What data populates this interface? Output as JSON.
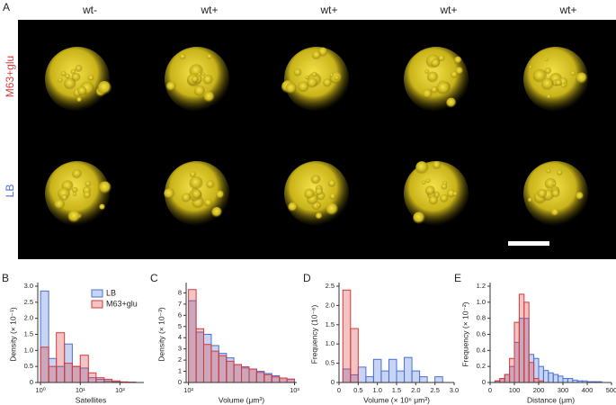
{
  "panel_a": {
    "label": "A",
    "columns": [
      "wt-",
      "wt+",
      "wt+",
      "wt+",
      "wt+"
    ],
    "rows": [
      "M63+glu",
      "LB"
    ]
  },
  "chart_data": [
    {
      "type": "histogram",
      "label": "B",
      "xlabel": "Satellites",
      "ylabel": "Density (× 10⁻¹)",
      "xscale": "log",
      "xlim": [
        0.85,
        400
      ],
      "xticks": [
        {
          "value": 1,
          "label": "10⁰"
        },
        {
          "value": 10,
          "label": "10¹"
        },
        {
          "value": 100,
          "label": "10²"
        }
      ],
      "ylim": [
        0,
        3.0
      ],
      "yticks": [
        0,
        0.5,
        {
          "value": 1.0,
          "label": "1.0"
        },
        1.5,
        {
          "value": 2.0,
          "label": "2.0"
        },
        2.5,
        {
          "value": 3.0,
          "label": "3.0"
        }
      ],
      "legend": "upper right",
      "bins": [
        1,
        1.6,
        2.5,
        4,
        6.3,
        10,
        16,
        25,
        40,
        63,
        100,
        160,
        250
      ],
      "series": [
        {
          "name": "LB",
          "color": "#4a6fd6",
          "values": [
            2.85,
            0.75,
            0.5,
            1.2,
            0.5,
            0.45,
            0.15,
            0.1,
            0.05,
            0.02,
            0.01,
            0.01
          ]
        },
        {
          "name": "M63+glu",
          "color": "#d63a3a",
          "values": [
            1.1,
            0.5,
            1.55,
            0.6,
            0.5,
            0.85,
            0.3,
            0.15,
            0.1,
            0.05,
            0.02,
            0.01
          ]
        }
      ]
    },
    {
      "type": "histogram",
      "label": "C",
      "xlabel": "Volume (μm³)",
      "ylabel": "Density (× 10⁻³)",
      "xscale": "log",
      "xlim": [
        95,
        1050
      ],
      "xticks": [
        {
          "value": 100,
          "label": "10²"
        },
        {
          "value": 1000,
          "label": "10³"
        }
      ],
      "ylim": [
        0,
        8.6
      ],
      "yticks": [
        0,
        1,
        2,
        3,
        4,
        5,
        6,
        7,
        8
      ],
      "bins": [
        100,
        118,
        139,
        164,
        193,
        228,
        268,
        316,
        373,
        439,
        518,
        611,
        720,
        848,
        1000
      ],
      "series": [
        {
          "color": "#4a6fd6",
          "values": [
            7.3,
            4.5,
            4.3,
            3.3,
            2.6,
            2.2,
            1.6,
            1.3,
            1.2,
            1.0,
            0.8,
            0.6,
            0.4,
            0.3
          ]
        },
        {
          "color": "#d63a3a",
          "values": [
            8.3,
            4.8,
            3.4,
            2.8,
            2.4,
            1.9,
            1.6,
            1.4,
            1.2,
            0.9,
            0.7,
            0.5,
            0.4,
            0.3
          ]
        }
      ]
    },
    {
      "type": "histogram",
      "label": "D",
      "xlabel": "Volume (× 10⁶ μm³)",
      "ylabel": "Frequency (10⁻⁶)",
      "xlim": [
        0,
        3.0
      ],
      "xticks": [
        0,
        0.5,
        {
          "value": 1.0,
          "label": "1.0"
        },
        1.5,
        {
          "value": 2.0,
          "label": "2.0"
        },
        2.5,
        {
          "value": 3.0,
          "label": "3.0"
        }
      ],
      "ylim": [
        0,
        2.5
      ],
      "yticks": [
        0,
        0.5,
        {
          "value": 1.0,
          "label": "1.0"
        },
        1.5,
        {
          "value": 2.0,
          "label": "2.0"
        },
        2.5
      ],
      "bins": [
        0.1,
        0.3,
        0.5,
        0.7,
        0.9,
        1.1,
        1.3,
        1.5,
        1.7,
        1.9,
        2.1,
        2.3,
        2.5,
        2.7
      ],
      "series": [
        {
          "color": "#4a6fd6",
          "values": [
            0.35,
            0.2,
            0.4,
            0.15,
            0.6,
            0.3,
            0.6,
            0.3,
            0.65,
            0.3,
            0.15,
            0,
            0.15
          ]
        },
        {
          "color": "#d63a3a",
          "values": [
            2.4,
            1.4,
            0,
            0,
            0,
            0,
            0,
            0,
            0,
            0,
            0,
            0,
            0
          ]
        }
      ]
    },
    {
      "type": "histogram",
      "label": "E",
      "xlabel": "Distance (μm)",
      "ylabel": "Frequency (× 10⁻²)",
      "xlim": [
        0,
        500
      ],
      "xticks": [
        0,
        100,
        200,
        300,
        400,
        500
      ],
      "ylim": [
        0,
        1.2
      ],
      "yticks": [
        0,
        0.2,
        0.4,
        0.6,
        0.8,
        {
          "value": 1.0,
          "label": "1.0"
        },
        1.2
      ],
      "bins": [
        0,
        20,
        40,
        60,
        80,
        100,
        120,
        140,
        160,
        180,
        200,
        220,
        240,
        260,
        280,
        300,
        320,
        340,
        360,
        380,
        400,
        420,
        440,
        460
      ],
      "series": [
        {
          "color": "#4a6fd6",
          "values": [
            0,
            0.02,
            0.05,
            0.1,
            0.2,
            0.5,
            0.8,
            0.8,
            0.35,
            0.3,
            0.2,
            0.15,
            0.12,
            0.1,
            0.08,
            0.05,
            0.05,
            0.03,
            0.02,
            0.02,
            0.01,
            0.01,
            0.01
          ]
        },
        {
          "color": "#d63a3a",
          "values": [
            0,
            0.02,
            0.05,
            0.1,
            0.3,
            0.75,
            1.1,
            1.0,
            0.25,
            0.05,
            0.02,
            0,
            0,
            0,
            0,
            0,
            0,
            0,
            0,
            0,
            0,
            0,
            0
          ]
        }
      ]
    }
  ]
}
